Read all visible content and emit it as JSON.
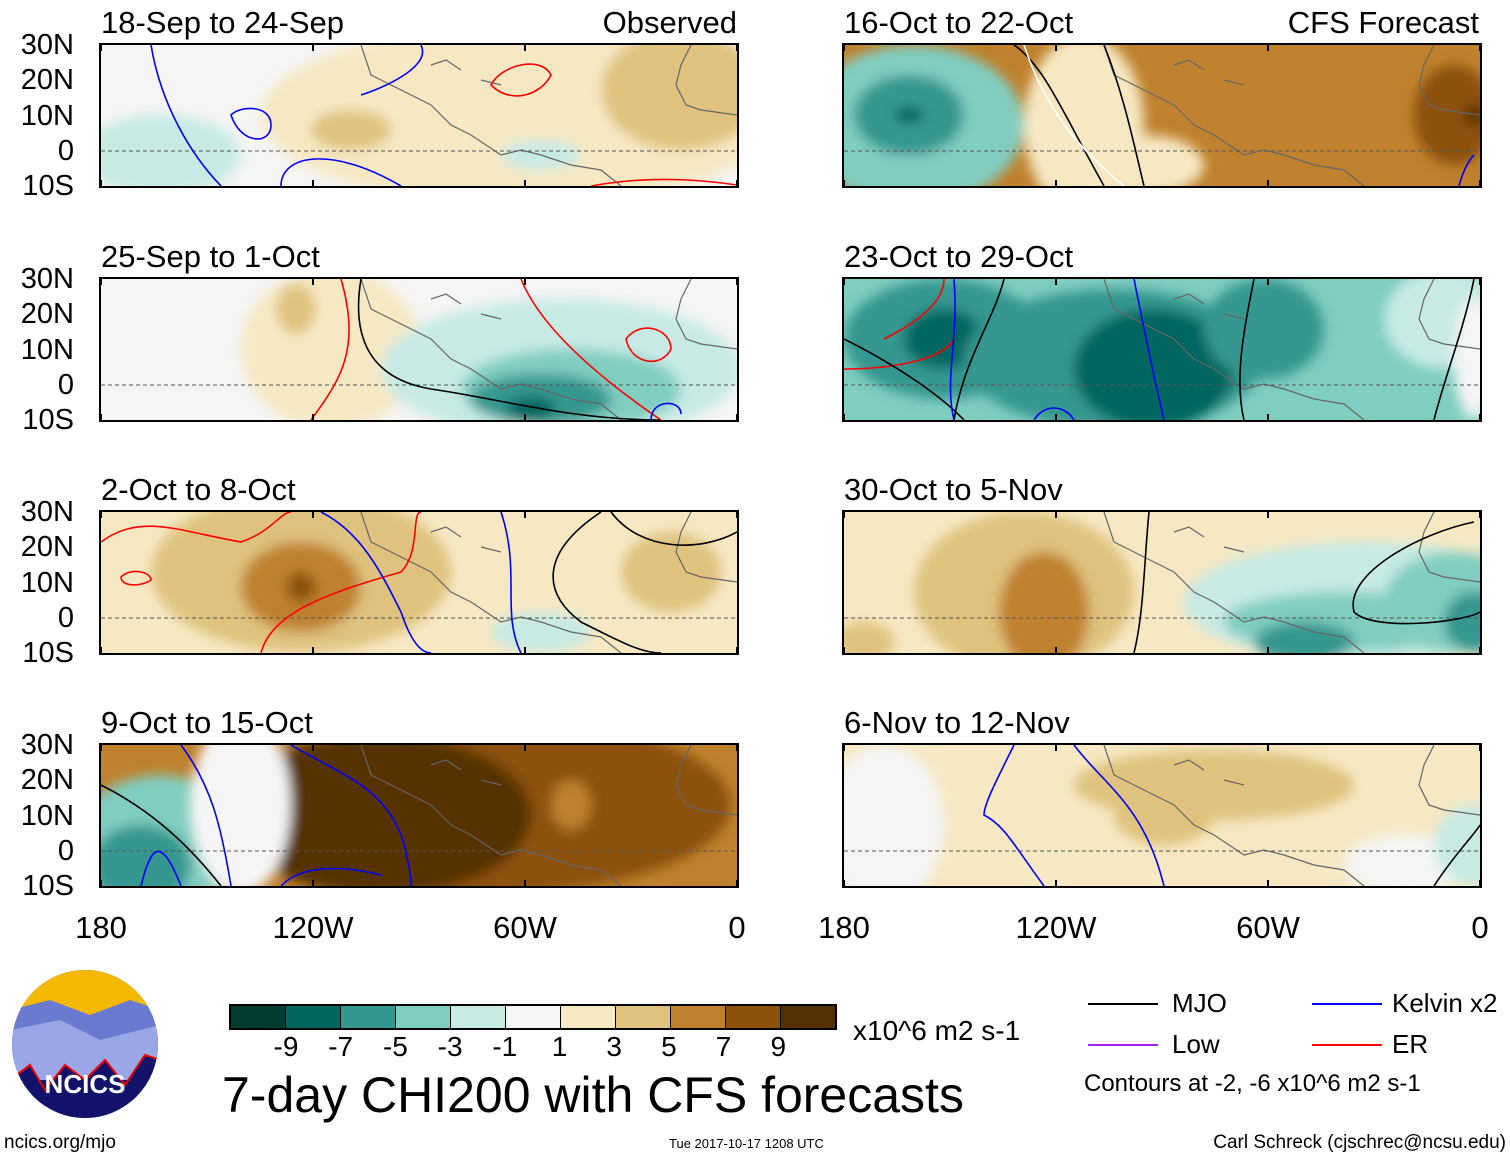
{
  "headers": {
    "left": "Observed",
    "right": "CFS Forecast"
  },
  "panels": [
    {
      "title": "18-Sep to 24-Sep",
      "column": "left"
    },
    {
      "title": "25-Sep to 1-Oct",
      "column": "left"
    },
    {
      "title": "2-Oct to 8-Oct",
      "column": "left"
    },
    {
      "title": "9-Oct to 15-Oct",
      "column": "left"
    },
    {
      "title": "16-Oct to 22-Oct",
      "column": "right"
    },
    {
      "title": "23-Oct to 29-Oct",
      "column": "right"
    },
    {
      "title": "30-Oct to 5-Nov",
      "column": "right"
    },
    {
      "title": "6-Nov to 12-Nov",
      "column": "right"
    }
  ],
  "lat_labels": [
    "30N",
    "20N",
    "10N",
    "0",
    "10S"
  ],
  "lon_labels": [
    "180",
    "120W",
    "60W",
    "0"
  ],
  "colorbar": {
    "colors": [
      "#003c30",
      "#01665e",
      "#35978f",
      "#80cdc1",
      "#c7eae5",
      "#f5f5f5",
      "#f6e8c3",
      "#dfc27d",
      "#bf812d",
      "#8c510a",
      "#543005"
    ],
    "ticks": [
      "-9",
      "-7",
      "-5",
      "-3",
      "-1",
      "1",
      "3",
      "5",
      "7",
      "9"
    ],
    "units": "x10^6 m2 s-1"
  },
  "title": "7-day CHI200 with CFS forecasts",
  "legend": [
    {
      "label": "MJO",
      "color": "#000000"
    },
    {
      "label": "Kelvin x2",
      "color": "#0000ff"
    },
    {
      "label": "Low",
      "color": "#a020f0"
    },
    {
      "label": "ER",
      "color": "#ff0000"
    }
  ],
  "contours_note": "Contours at -2, -6 x10^6 m2 s-1",
  "logo_text": "NCICS",
  "footer": {
    "left": "ncics.org/mjo",
    "center": "Tue 2017-10-17 1208 UTC",
    "right": "Carl Schreck (cjschrec@ncsu.edu)"
  }
}
